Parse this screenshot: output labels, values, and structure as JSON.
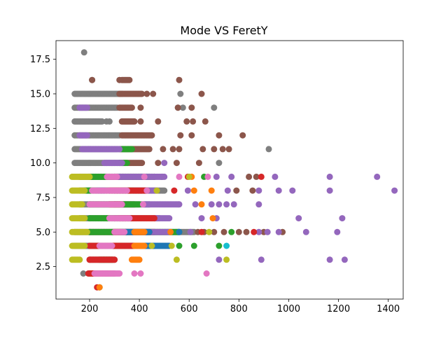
{
  "chart_data": {
    "type": "scatter",
    "title": "Mode VS FeretY",
    "xlabel": "",
    "ylabel": "",
    "xlim": [
      65,
      1460
    ],
    "ylim": [
      0.15,
      18.85
    ],
    "x_ticks": [
      200,
      400,
      600,
      800,
      1000,
      1200,
      1400
    ],
    "x_tick_labels": [
      "200",
      "400",
      "600",
      "800",
      "1000",
      "1200",
      "1400"
    ],
    "y_ticks": [
      2.5,
      5.0,
      7.5,
      10.0,
      12.5,
      15.0,
      17.5
    ],
    "y_tick_labels": [
      "2.5",
      "5.0",
      "7.5",
      "10.0",
      "12.5",
      "15.0",
      "17.5"
    ],
    "grid": false,
    "legend": "none",
    "colors": {
      "blue": "#1f77b4",
      "orange": "#ff7f0e",
      "green": "#2ca02c",
      "red": "#d62728",
      "purple": "#9467bd",
      "brown": "#8c564b",
      "pink": "#e377c2",
      "gray": "#7f7f7f",
      "olive": "#bcbd22",
      "cyan": "#17becf"
    },
    "series": [
      {
        "color": "#7f7f7f",
        "bands": [
          {
            "y": 15,
            "x": [
              [
                140,
                330
              ]
            ],
            "pts": [
              565
            ]
          },
          {
            "y": 14,
            "x": [
              [
                140,
                310
              ]
            ],
            "pts": [
              555,
              575,
              700
            ]
          },
          {
            "y": 13,
            "x": [
              [
                140,
                250
              ]
            ],
            "pts": [
              268,
              280
            ]
          },
          {
            "y": 12,
            "x": [
              [
                140,
                320
              ]
            ],
            "pts": []
          },
          {
            "y": 11,
            "x": [
              [
                140,
                310
              ]
            ],
            "pts": [
              920
            ]
          },
          {
            "y": 10,
            "x": [
              [
                140,
                320
              ]
            ],
            "pts": [
              720
            ]
          },
          {
            "y": 9,
            "x": [
              [
                160,
                440
              ]
            ],
            "pts": []
          },
          {
            "y": 8,
            "x": [
              [
                160,
                500
              ]
            ],
            "pts": []
          },
          {
            "y": 7,
            "x": [
              [
                160,
                440
              ]
            ],
            "pts": []
          },
          {
            "y": 6,
            "x": [
              [
                160,
                480
              ]
            ],
            "pts": []
          },
          {
            "y": 5,
            "x": [
              [
                140,
                620
              ]
            ],
            "pts": []
          },
          {
            "y": 4,
            "x": [
              [
                140,
                240
              ]
            ],
            "pts": []
          }
        ],
        "pts": [
          [
            178,
            18
          ],
          [
            175,
            2
          ],
          [
            210,
            16
          ]
        ]
      },
      {
        "color": "#8c564b",
        "bands": [
          {
            "y": 16,
            "x": [
              [
                330,
                360
              ]
            ],
            "pts": [
              560
            ]
          },
          {
            "y": 15,
            "x": [
              [
                320,
                410
              ]
            ],
            "pts": [
              430,
              455,
              650
            ]
          },
          {
            "y": 14,
            "x": [
              [
                320,
                370
              ]
            ],
            "pts": [
              405,
              555,
              610
            ]
          },
          {
            "y": 13,
            "x": [
              [
                330,
                380
              ]
            ],
            "pts": [
              405,
              475,
              590,
              615,
              665
            ]
          },
          {
            "y": 12,
            "x": [
              [
                330,
                450
              ]
            ],
            "pts": [
              565,
              610,
              720,
              815
            ]
          },
          {
            "y": 11,
            "x": [
              [
                320,
                440
              ]
            ],
            "pts": [
              495,
              535,
              560,
              655,
              700,
              735,
              760
            ]
          },
          {
            "y": 10,
            "x": [
              [
                330,
                410
              ]
            ],
            "pts": [
              475,
              550,
              640
            ]
          },
          {
            "y": 9,
            "x": [
              [
                300,
                420
              ]
            ],
            "pts": [
              460,
              840,
              870
            ]
          },
          {
            "y": 8,
            "x": [
              [
                300,
                410
              ]
            ],
            "pts": [
              790,
              855
            ]
          },
          {
            "y": 7,
            "x": [
              [
                300,
                380
              ]
            ],
            "pts": []
          },
          {
            "y": 6,
            "x": [
              [
                300,
                360
              ]
            ],
            "pts": []
          },
          {
            "y": 5,
            "x": [
              [
                200,
                460
              ]
            ],
            "pts": [
              635,
              660,
              700,
              740,
              800,
              830,
              900,
              975
            ]
          },
          {
            "y": 4,
            "x": [
              [
                200,
                420
              ]
            ],
            "pts": []
          },
          {
            "y": 3,
            "x": [
              [
                200,
                300
              ]
            ],
            "pts": []
          },
          {
            "y": 2,
            "x": [
              [
                200,
                300
              ]
            ],
            "pts": []
          }
        ],
        "pts": [
          [
            210,
            16
          ],
          [
            320,
            16
          ]
        ]
      },
      {
        "color": "#2ca02c",
        "bands": [
          {
            "y": 11,
            "x": [
              [
                330,
                370
              ]
            ],
            "pts": []
          },
          {
            "y": 10,
            "x": [
              [
                320,
                350
              ]
            ],
            "pts": []
          },
          {
            "y": 9,
            "x": [
              [
                200,
                460
              ]
            ],
            "pts": [
              490,
              660
            ]
          },
          {
            "y": 8,
            "x": [
              [
                180,
                430
              ]
            ],
            "pts": []
          },
          {
            "y": 7,
            "x": [
              [
                200,
                400
              ]
            ],
            "pts": []
          },
          {
            "y": 6,
            "x": [
              [
                200,
                370
              ]
            ],
            "pts": []
          },
          {
            "y": 5,
            "x": [
              [
                200,
                560
              ]
            ],
            "pts": [
              770
            ]
          },
          {
            "y": 4,
            "x": [
              [
                200,
                380
              ]
            ],
            "pts": [
              560,
              620,
              720
            ]
          },
          {
            "y": 3,
            "x": [
              [
                240,
                290
              ]
            ],
            "pts": []
          }
        ],
        "pts": [
          [
            240,
            1
          ]
        ]
      },
      {
        "color": "#9467bd",
        "bands": [
          {
            "y": 14,
            "x": [
              [
                160,
                190
              ]
            ],
            "pts": []
          },
          {
            "y": 12,
            "x": [
              [
                160,
                190
              ]
            ],
            "pts": []
          },
          {
            "y": 11,
            "x": [
              [
                170,
                320
              ]
            ],
            "pts": []
          },
          {
            "y": 10,
            "x": [
              [
                260,
                330
              ]
            ],
            "pts": [
              500
            ]
          },
          {
            "y": 9,
            "x": [
              [
                300,
                500
              ]
            ],
            "pts": [
              710,
              770,
              945,
              1165,
              1355
            ]
          },
          {
            "y": 8,
            "x": [
              [
                380,
                470
              ]
            ],
            "pts": [
              595,
              755,
              880,
              960,
              1015,
              1165,
              1425
            ]
          },
          {
            "y": 7,
            "x": [
              [
                420,
                560
              ]
            ],
            "pts": [
              625,
              690,
              720,
              750,
              780,
              880
            ]
          },
          {
            "y": 6,
            "x": [
              [
                460,
                520
              ]
            ],
            "pts": [
              650,
              710,
              1040,
              1215
            ]
          },
          {
            "y": 5,
            "x": [
              [
                420,
                520
              ]
            ],
            "pts": [
              605,
              880,
              915,
              960,
              1070,
              1195
            ]
          },
          {
            "y": 4,
            "x": [
              [
                400,
                460
              ]
            ],
            "pts": []
          },
          {
            "y": 3,
            "x": [],
            "pts": [
              720,
              890,
              1165,
              1225
            ]
          }
        ],
        "pts": []
      },
      {
        "color": "#d62728",
        "bands": [
          {
            "y": 9,
            "x": [],
            "pts": [
              595,
              890
            ]
          },
          {
            "y": 8,
            "x": [
              [
                280,
                430
              ]
            ],
            "pts": [
              540
            ]
          },
          {
            "y": 7,
            "x": [
              [
                280,
                320
              ]
            ],
            "pts": []
          },
          {
            "y": 6,
            "x": [
              [
                320,
                460
              ]
            ],
            "pts": []
          },
          {
            "y": 5,
            "x": [
              [
                300,
                440
              ]
            ],
            "pts": [
              650,
              860
            ]
          },
          {
            "y": 4,
            "x": [
              [
                200,
                420
              ]
            ],
            "pts": []
          },
          {
            "y": 3,
            "x": [
              [
                200,
                300
              ]
            ],
            "pts": []
          },
          {
            "y": 2,
            "x": [
              [
                195,
                280
              ]
            ],
            "pts": []
          }
        ],
        "pts": [
          [
            230,
            1
          ]
        ]
      },
      {
        "color": "#1f77b4",
        "bands": [
          {
            "y": 8,
            "x": [
              [
                230,
                260
              ]
            ],
            "pts": []
          },
          {
            "y": 5,
            "x": [
              [
                330,
                440
              ]
            ],
            "pts": [
              560
            ]
          },
          {
            "y": 4,
            "x": [
              [
                420,
                520
              ]
            ],
            "pts": []
          }
        ],
        "pts": []
      },
      {
        "color": "#ff7f0e",
        "bands": [
          {
            "y": 9,
            "x": [],
            "pts": [
              610
            ]
          },
          {
            "y": 8,
            "x": [],
            "pts": [
              620,
              690
            ]
          },
          {
            "y": 7,
            "x": [],
            "pts": [
              650
            ]
          },
          {
            "y": 6,
            "x": [],
            "pts": [
              695
            ]
          },
          {
            "y": 5,
            "x": [
              [
                380,
                420
              ]
            ],
            "pts": [
              525
            ]
          },
          {
            "y": 4,
            "x": [
              [
                380,
                420
              ]
            ],
            "pts": []
          },
          {
            "y": 3,
            "x": [
              [
                370,
                400
              ]
            ],
            "pts": []
          }
        ],
        "pts": [
          [
            240,
            1
          ]
        ]
      },
      {
        "color": "#bcbd22",
        "bands": [
          {
            "y": 9,
            "x": [
              [
                130,
                200
              ]
            ],
            "pts": [
              600
            ]
          },
          {
            "y": 8,
            "x": [
              [
                130,
                180
              ]
            ],
            "pts": [
              470
            ]
          },
          {
            "y": 7,
            "x": [
              [
                130,
                170
              ]
            ],
            "pts": []
          },
          {
            "y": 6,
            "x": [
              [
                130,
                180
              ]
            ],
            "pts": []
          },
          {
            "y": 5,
            "x": [
              [
                130,
                190
              ]
            ],
            "pts": [
              680
            ]
          },
          {
            "y": 4,
            "x": [
              [
                130,
                180
              ]
            ],
            "pts": [
              450,
              530
            ]
          },
          {
            "y": 3,
            "x": [
              [
                130,
                160
              ]
            ],
            "pts": [
              550,
              750
            ]
          }
        ],
        "pts": []
      },
      {
        "color": "#17becf",
        "bands": [
          {
            "y": 4,
            "x": [],
            "pts": [
              750
            ]
          }
        ],
        "pts": []
      },
      {
        "color": "#e377c2",
        "bands": [
          {
            "y": 9,
            "x": [
              [
                270,
                310
              ]
            ],
            "pts": [
              420,
              560,
              675
            ]
          },
          {
            "y": 8,
            "x": [
              [
                210,
                350
              ]
            ],
            "pts": [
              430
            ]
          },
          {
            "y": 7,
            "x": [
              [
                200,
                330
              ]
            ],
            "pts": [
              415
            ]
          },
          {
            "y": 6,
            "x": [
              [
                280,
                360
              ]
            ],
            "pts": []
          },
          {
            "y": 5,
            "x": [
              [
                300,
                340
              ]
            ],
            "pts": []
          },
          {
            "y": 4,
            "x": [
              [
                240,
                290
              ]
            ],
            "pts": []
          },
          {
            "y": 2,
            "x": [
              [
                220,
                320
              ]
            ],
            "pts": [
              380,
              405,
              670
            ]
          }
        ],
        "pts": []
      }
    ]
  }
}
